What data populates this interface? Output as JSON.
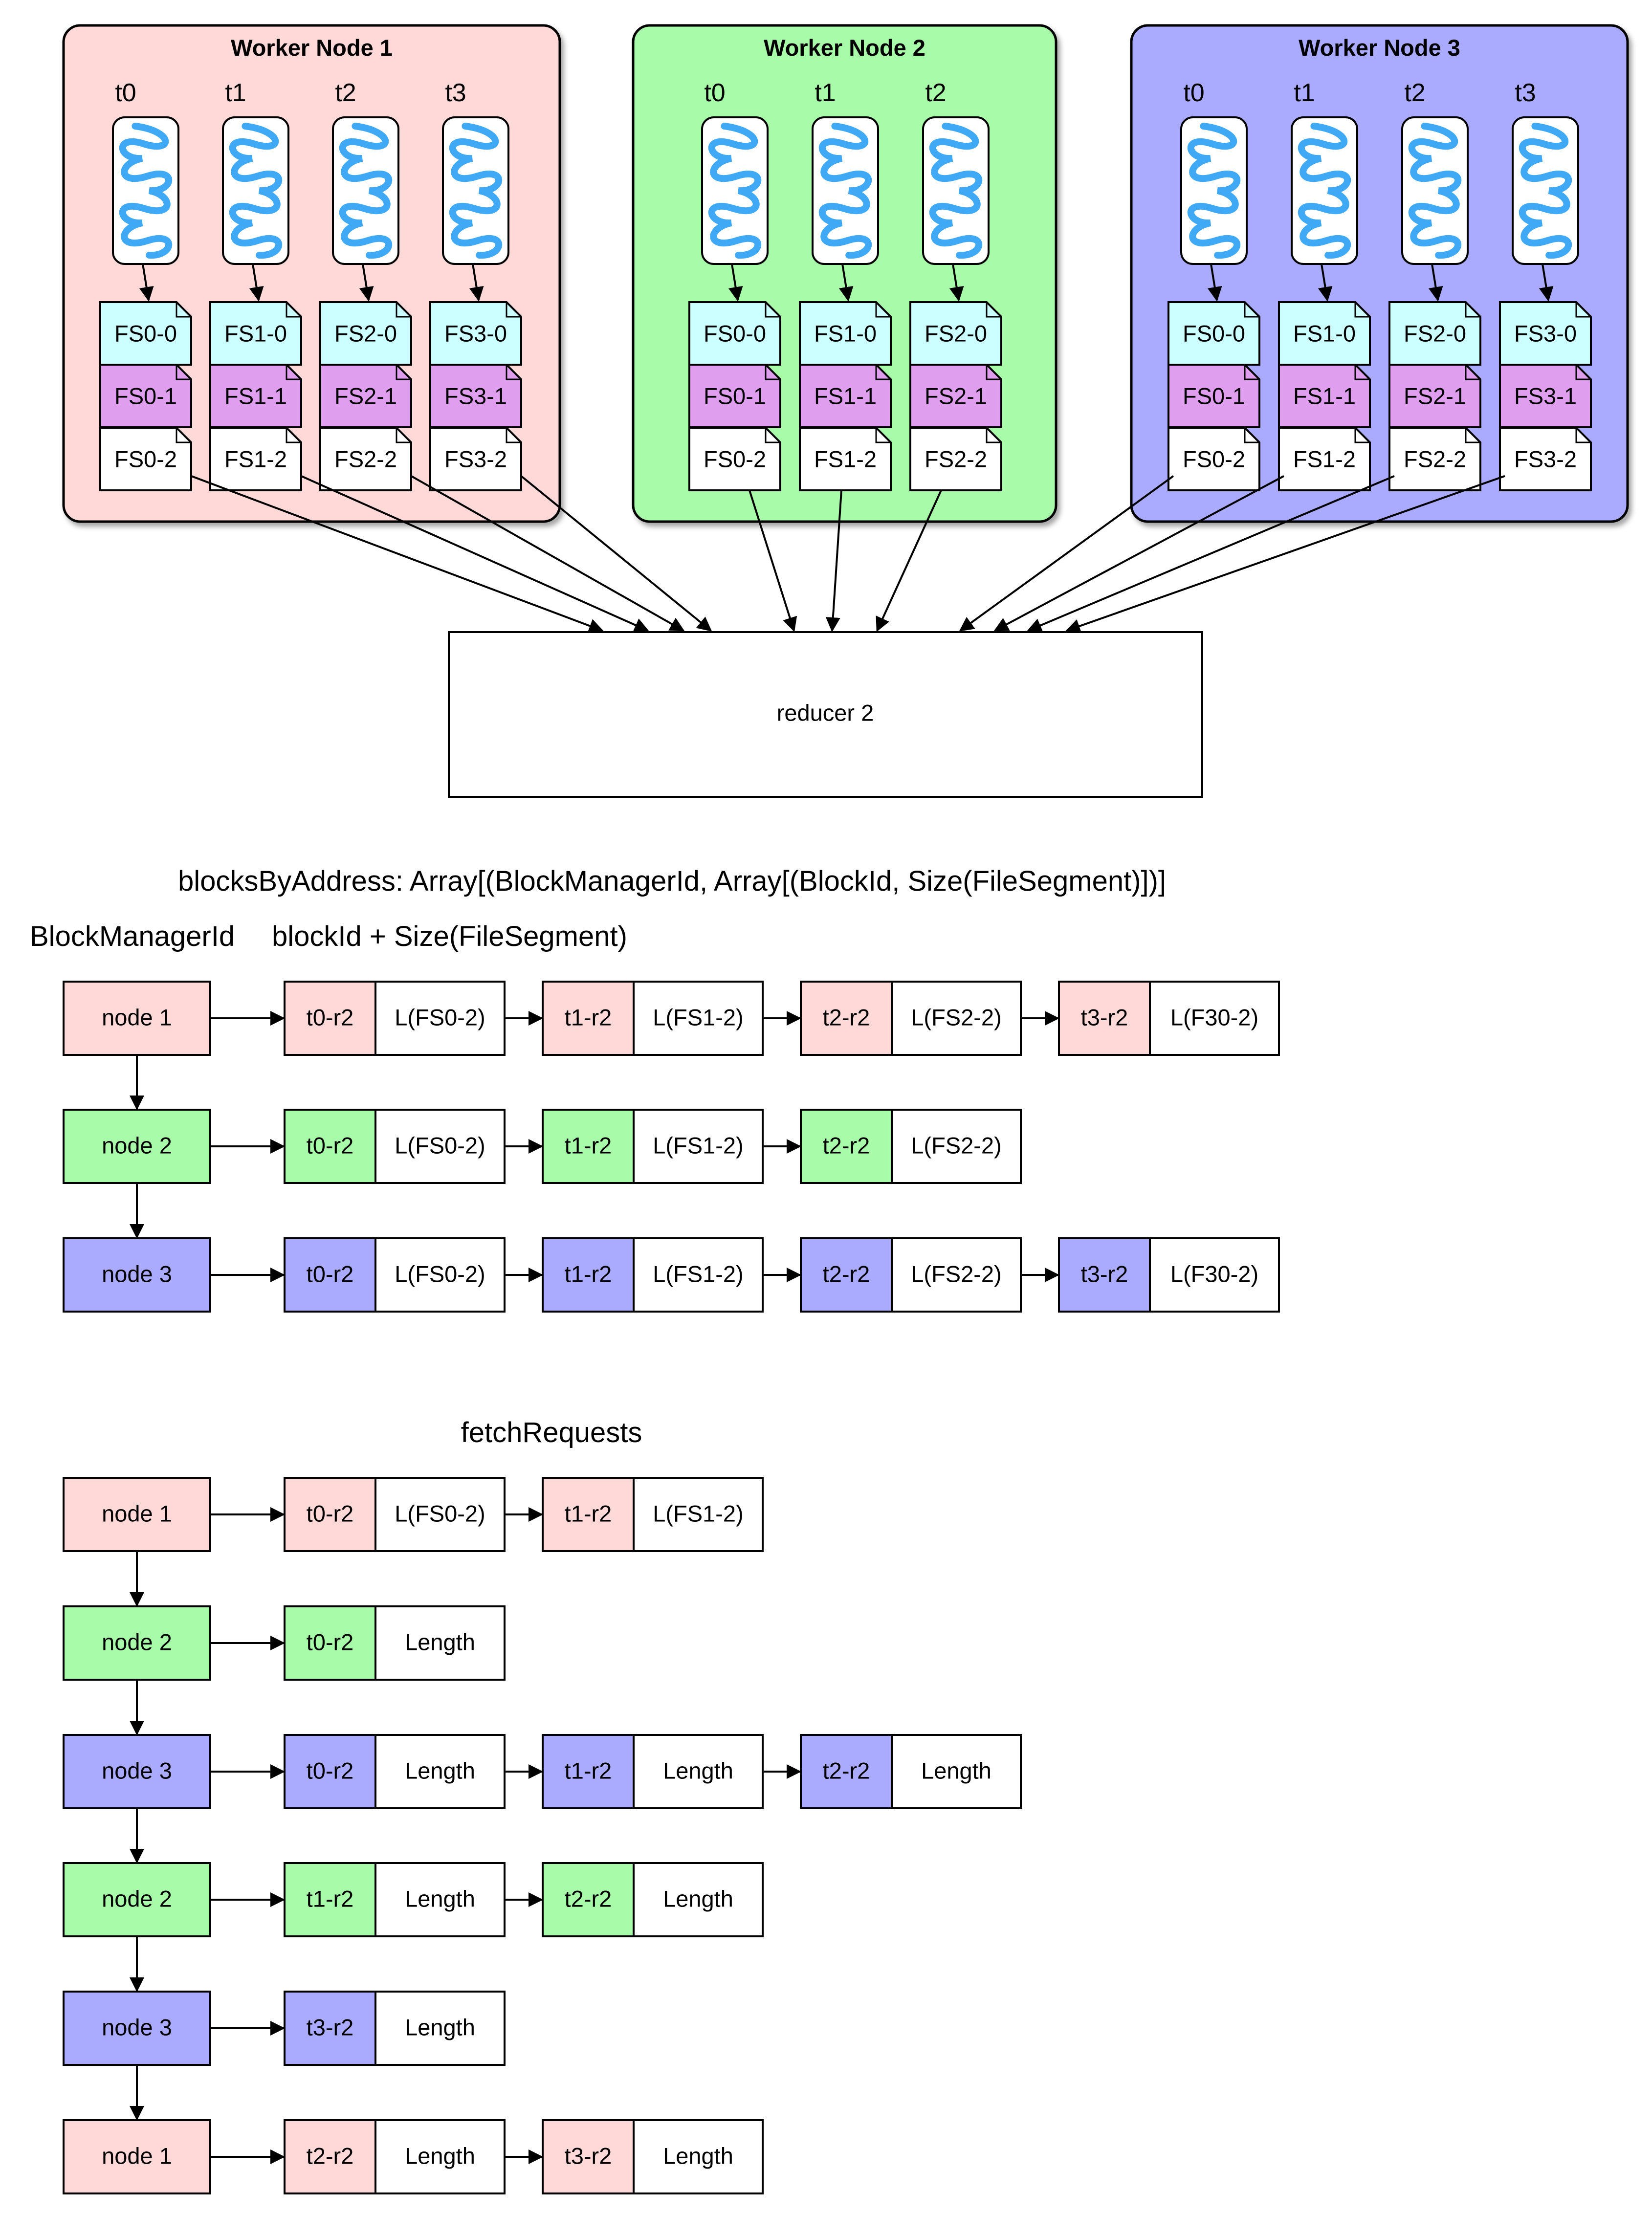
{
  "colors": {
    "node1": "#ffd8d8",
    "node2": "#a8fba8",
    "node3": "#aaaaff",
    "fs_row0": "#ccffff",
    "fs_row1": "#e09eef",
    "fs_row2": "#ffffff",
    "thread_wave": "#3fa9f5",
    "stroke": "#000000"
  },
  "workers": [
    {
      "title": "Worker Node 1",
      "color_key": "node1",
      "threads": [
        "t0",
        "t1",
        "t2",
        "t3"
      ],
      "files": [
        [
          "FS0-0",
          "FS0-1",
          "FS0-2"
        ],
        [
          "FS1-0",
          "FS1-1",
          "FS1-2"
        ],
        [
          "FS2-0",
          "FS2-1",
          "FS2-2"
        ],
        [
          "FS3-0",
          "FS3-1",
          "FS3-2"
        ]
      ]
    },
    {
      "title": "Worker Node 2",
      "color_key": "node2",
      "threads": [
        "t0",
        "t1",
        "t2"
      ],
      "files": [
        [
          "FS0-0",
          "FS0-1",
          "FS0-2"
        ],
        [
          "FS1-0",
          "FS1-1",
          "FS1-2"
        ],
        [
          "FS2-0",
          "FS2-1",
          "FS2-2"
        ]
      ]
    },
    {
      "title": "Worker Node 3",
      "color_key": "node3",
      "threads": [
        "t0",
        "t1",
        "t2",
        "t3"
      ],
      "files": [
        [
          "FS0-0",
          "FS0-1",
          "FS0-2"
        ],
        [
          "FS1-0",
          "FS1-1",
          "FS1-2"
        ],
        [
          "FS2-0",
          "FS2-1",
          "FS2-2"
        ],
        [
          "FS3-0",
          "FS3-1",
          "FS3-2"
        ]
      ]
    }
  ],
  "reducer": {
    "label": "reducer 2"
  },
  "blocks_by_address": {
    "title": "blocksByAddress: Array[(BlockManagerId, Array[(BlockId, Size(FileSegment)])]",
    "header_left": "BlockManagerId",
    "header_right": "blockId + Size(FileSegment)",
    "rows": [
      {
        "node": "node 1",
        "color_key": "node1",
        "blocks": [
          [
            "t0-r2",
            "L(FS0-2)"
          ],
          [
            "t1-r2",
            "L(FS1-2)"
          ],
          [
            "t2-r2",
            "L(FS2-2)"
          ],
          [
            "t3-r2",
            "L(F30-2)"
          ]
        ]
      },
      {
        "node": "node 2",
        "color_key": "node2",
        "blocks": [
          [
            "t0-r2",
            "L(FS0-2)"
          ],
          [
            "t1-r2",
            "L(FS1-2)"
          ],
          [
            "t2-r2",
            "L(FS2-2)"
          ]
        ]
      },
      {
        "node": "node 3",
        "color_key": "node3",
        "blocks": [
          [
            "t0-r2",
            "L(FS0-2)"
          ],
          [
            "t1-r2",
            "L(FS1-2)"
          ],
          [
            "t2-r2",
            "L(FS2-2)"
          ],
          [
            "t3-r2",
            "L(F30-2)"
          ]
        ]
      }
    ]
  },
  "fetch_requests": {
    "title": "fetchRequests",
    "rows": [
      {
        "node": "node 1",
        "color_key": "node1",
        "blocks": [
          [
            "t0-r2",
            "L(FS0-2)"
          ],
          [
            "t1-r2",
            "L(FS1-2)"
          ]
        ]
      },
      {
        "node": "node 2",
        "color_key": "node2",
        "blocks": [
          [
            "t0-r2",
            "Length"
          ]
        ]
      },
      {
        "node": "node 3",
        "color_key": "node3",
        "blocks": [
          [
            "t0-r2",
            "Length"
          ],
          [
            "t1-r2",
            "Length"
          ],
          [
            "t2-r2",
            "Length"
          ]
        ]
      },
      {
        "node": "node 2",
        "color_key": "node2",
        "blocks": [
          [
            "t1-r2",
            "Length"
          ],
          [
            "t2-r2",
            "Length"
          ]
        ]
      },
      {
        "node": "node 3",
        "color_key": "node3",
        "blocks": [
          [
            "t3-r2",
            "Length"
          ]
        ]
      },
      {
        "node": "node 1",
        "color_key": "node1",
        "blocks": [
          [
            "t2-r2",
            "Length"
          ],
          [
            "t3-r2",
            "Length"
          ]
        ]
      }
    ]
  }
}
